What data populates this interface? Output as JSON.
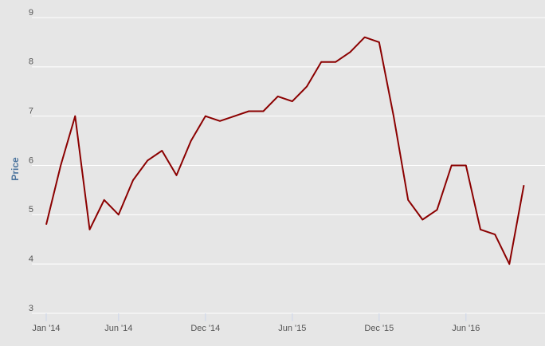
{
  "chart_data": {
    "type": "line",
    "y_label": "Price",
    "x": [
      "2014-01",
      "2014-02",
      "2014-03",
      "2014-04",
      "2014-05",
      "2014-06",
      "2014-07",
      "2014-08",
      "2014-09",
      "2014-10",
      "2014-11",
      "2014-12",
      "2015-01",
      "2015-02",
      "2015-03",
      "2015-04",
      "2015-05",
      "2015-06",
      "2015-07",
      "2015-08",
      "2015-09",
      "2015-10",
      "2015-11",
      "2015-12",
      "2016-01",
      "2016-02",
      "2016-03",
      "2016-04",
      "2016-05",
      "2016-06",
      "2016-07",
      "2016-08",
      "2016-09",
      "2016-10"
    ],
    "series": [
      {
        "name": "Price",
        "color": "#8b0000",
        "values": [
          4.8,
          6.0,
          7.0,
          4.7,
          5.3,
          5.0,
          5.7,
          6.1,
          6.3,
          5.8,
          6.5,
          7.0,
          6.9,
          7.0,
          7.1,
          7.1,
          7.4,
          7.3,
          7.6,
          8.1,
          8.1,
          8.3,
          8.6,
          8.5,
          7.0,
          5.3,
          4.9,
          5.1,
          6.0,
          6.0,
          4.7,
          4.6,
          4.0,
          5.6
        ]
      }
    ],
    "xlim": [
      "2014-01",
      "2016-10"
    ],
    "xticks": [
      {
        "value": "2014-01",
        "label": "Jan '14"
      },
      {
        "value": "2014-06",
        "label": "Jun '14"
      },
      {
        "value": "2014-12",
        "label": "Dec '14"
      },
      {
        "value": "2015-06",
        "label": "Jun '15"
      },
      {
        "value": "2015-12",
        "label": "Dec '15"
      },
      {
        "value": "2016-06",
        "label": "Jun '16"
      }
    ],
    "ylim": [
      3,
      9
    ],
    "yticks": [
      3,
      4,
      5,
      6,
      7,
      8,
      9
    ],
    "grid": true
  }
}
